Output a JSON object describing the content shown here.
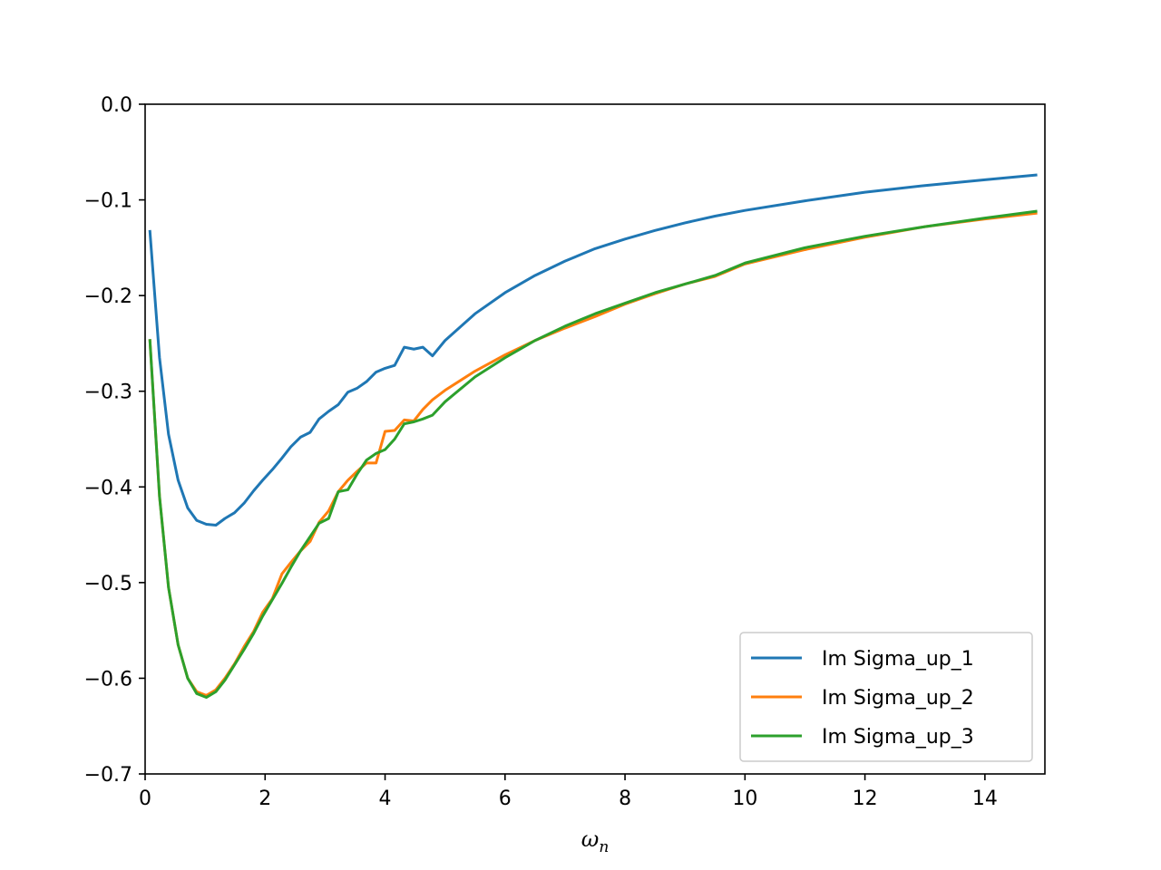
{
  "chart_data": {
    "type": "line",
    "title": "",
    "xlabel": "ω",
    "xlabel_subscript": "n",
    "ylabel": "",
    "xlim": [
      0,
      15
    ],
    "ylim": [
      -0.7,
      0.0
    ],
    "xticks": [
      0,
      2,
      4,
      6,
      8,
      10,
      12,
      14
    ],
    "yticks": [
      0.0,
      -0.1,
      -0.2,
      -0.3,
      -0.4,
      -0.5,
      -0.6,
      -0.7
    ],
    "xtick_labels": [
      "0",
      "2",
      "4",
      "6",
      "8",
      "10",
      "12",
      "14"
    ],
    "ytick_labels": [
      "0.0",
      "−0.1",
      "−0.2",
      "−0.3",
      "−0.4",
      "−0.5",
      "−0.6",
      "−0.7"
    ],
    "grid": false,
    "legend_position": "lower-right",
    "series": [
      {
        "name": "Im Sigma_up_1",
        "color": "#1f77b4",
        "x": [
          0.08,
          0.24,
          0.39,
          0.55,
          0.71,
          0.86,
          1.02,
          1.18,
          1.33,
          1.49,
          1.65,
          1.81,
          1.96,
          2.12,
          2.28,
          2.43,
          2.59,
          2.75,
          2.9,
          3.06,
          3.22,
          3.38,
          3.53,
          3.69,
          3.85,
          4.0,
          4.16,
          4.32,
          4.48,
          4.63,
          4.79,
          5.0,
          5.5,
          6.0,
          6.5,
          7.0,
          7.5,
          8.0,
          8.5,
          9.0,
          9.5,
          10.0,
          11.0,
          12.0,
          13.0,
          14.0,
          14.85
        ],
        "y": [
          -0.133,
          -0.265,
          -0.345,
          -0.393,
          -0.422,
          -0.435,
          -0.439,
          -0.44,
          -0.433,
          -0.427,
          -0.417,
          -0.404,
          -0.393,
          -0.382,
          -0.37,
          -0.358,
          -0.348,
          -0.343,
          -0.329,
          -0.321,
          -0.314,
          -0.301,
          -0.297,
          -0.29,
          -0.28,
          -0.276,
          -0.273,
          -0.254,
          -0.256,
          -0.254,
          -0.263,
          -0.247,
          -0.219,
          -0.197,
          -0.179,
          -0.164,
          -0.151,
          -0.141,
          -0.132,
          -0.124,
          -0.117,
          -0.111,
          -0.101,
          -0.092,
          -0.085,
          -0.079,
          -0.074
        ]
      },
      {
        "name": "Im Sigma_up_2",
        "color": "#ff7f0e",
        "x": [
          0.08,
          0.24,
          0.39,
          0.55,
          0.71,
          0.86,
          1.02,
          1.18,
          1.33,
          1.49,
          1.65,
          1.81,
          1.96,
          2.12,
          2.28,
          2.43,
          2.59,
          2.75,
          2.9,
          3.06,
          3.22,
          3.38,
          3.53,
          3.69,
          3.85,
          4.0,
          4.16,
          4.32,
          4.48,
          4.63,
          4.79,
          5.0,
          5.5,
          6.0,
          6.5,
          7.0,
          7.5,
          8.0,
          8.5,
          9.0,
          9.5,
          10.0,
          11.0,
          12.0,
          13.0,
          14.0,
          14.85
        ],
        "y": [
          -0.247,
          -0.41,
          -0.505,
          -0.565,
          -0.6,
          -0.614,
          -0.618,
          -0.612,
          -0.6,
          -0.585,
          -0.567,
          -0.551,
          -0.531,
          -0.517,
          -0.491,
          -0.479,
          -0.467,
          -0.457,
          -0.437,
          -0.425,
          -0.405,
          -0.393,
          -0.384,
          -0.375,
          -0.375,
          -0.342,
          -0.341,
          -0.33,
          -0.331,
          -0.319,
          -0.309,
          -0.299,
          -0.279,
          -0.262,
          -0.247,
          -0.234,
          -0.222,
          -0.209,
          -0.198,
          -0.188,
          -0.18,
          -0.167,
          -0.152,
          -0.139,
          -0.128,
          -0.12,
          -0.114
        ]
      },
      {
        "name": "Im Sigma_up_3",
        "color": "#2ca02c",
        "x": [
          0.08,
          0.24,
          0.39,
          0.55,
          0.71,
          0.86,
          1.02,
          1.18,
          1.33,
          1.49,
          1.65,
          1.81,
          1.96,
          2.12,
          2.28,
          2.43,
          2.59,
          2.75,
          2.9,
          3.06,
          3.22,
          3.38,
          3.53,
          3.69,
          3.85,
          4.0,
          4.16,
          4.32,
          4.48,
          4.63,
          4.79,
          5.0,
          5.5,
          6.0,
          6.5,
          7.0,
          7.5,
          8.0,
          8.5,
          9.0,
          9.5,
          10.0,
          11.0,
          12.0,
          13.0,
          14.0,
          14.85
        ],
        "y": [
          -0.247,
          -0.41,
          -0.505,
          -0.565,
          -0.6,
          -0.616,
          -0.62,
          -0.614,
          -0.602,
          -0.586,
          -0.57,
          -0.553,
          -0.535,
          -0.518,
          -0.501,
          -0.484,
          -0.467,
          -0.452,
          -0.438,
          -0.433,
          -0.405,
          -0.403,
          -0.387,
          -0.372,
          -0.365,
          -0.361,
          -0.35,
          -0.334,
          -0.332,
          -0.329,
          -0.325,
          -0.311,
          -0.285,
          -0.265,
          -0.247,
          -0.232,
          -0.219,
          -0.208,
          -0.197,
          -0.188,
          -0.179,
          -0.166,
          -0.15,
          -0.138,
          -0.128,
          -0.119,
          -0.112
        ]
      }
    ]
  }
}
